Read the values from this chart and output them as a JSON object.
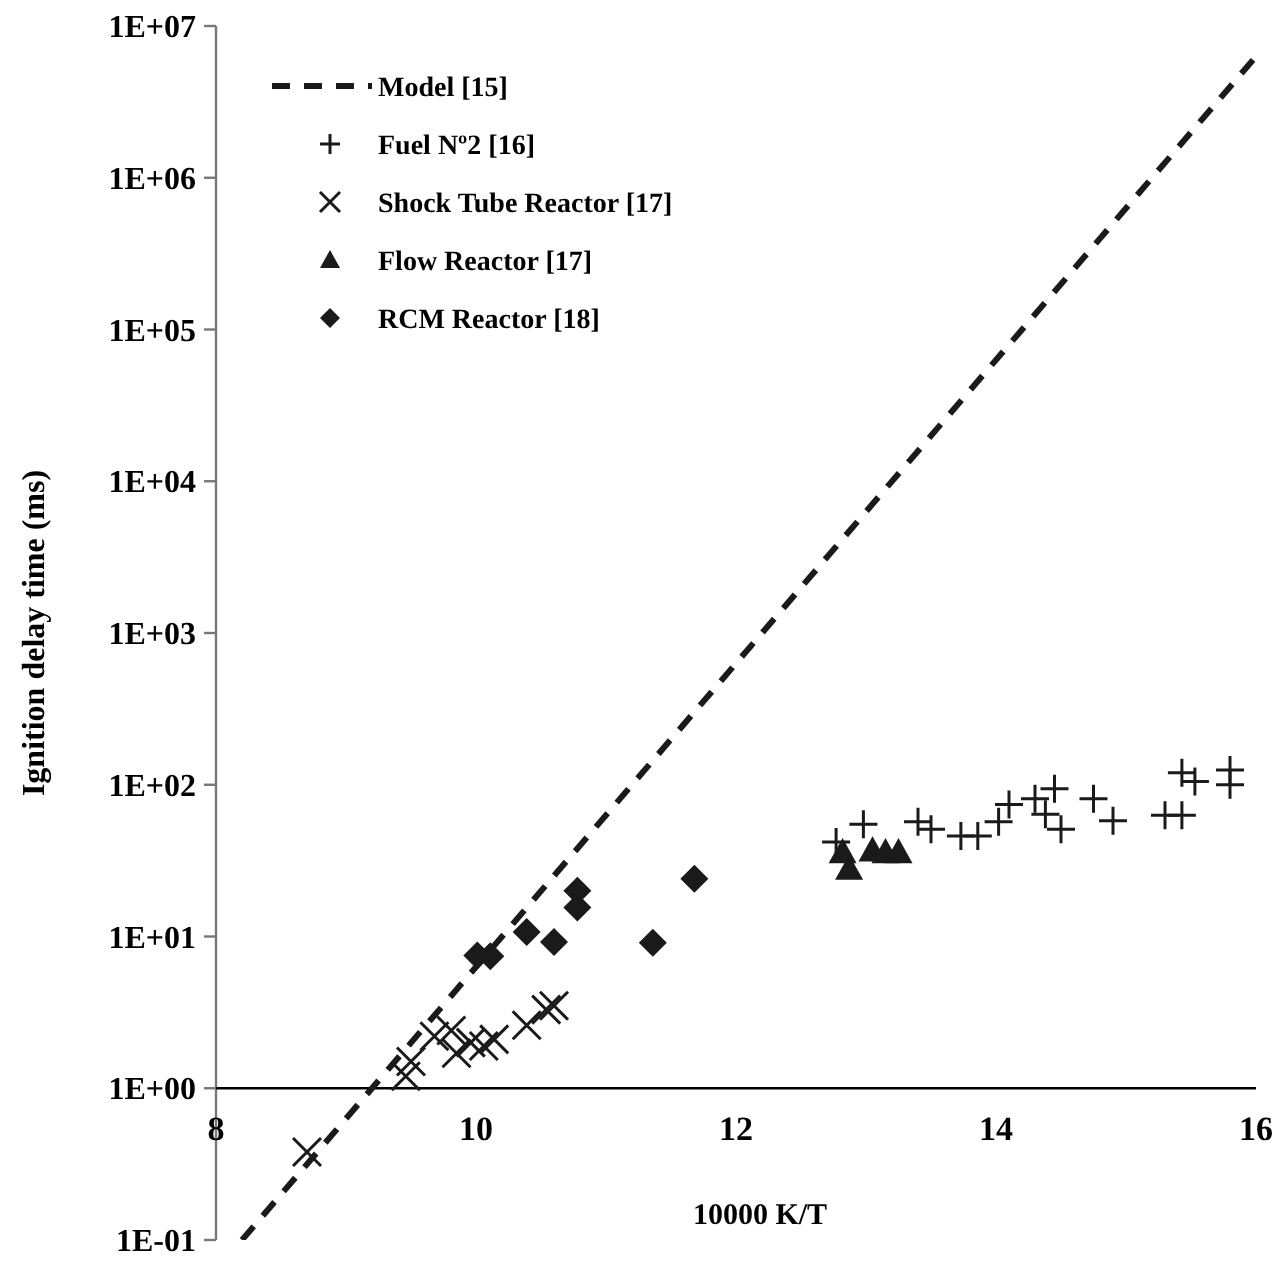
{
  "chart_data": {
    "type": "scatter",
    "xlabel": "10000 K/T",
    "ylabel": "Ignition delay time (ms)",
    "xlim": [
      8,
      16
    ],
    "xticks": [
      8,
      10,
      12,
      14,
      16
    ],
    "ylim": [
      0.1,
      10000000
    ],
    "log": "y",
    "yticks": [
      {
        "value": 0.1,
        "label": "1E-01"
      },
      {
        "value": 1,
        "label": "1E+00"
      },
      {
        "value": 10,
        "label": "1E+01"
      },
      {
        "value": 100,
        "label": "1E+02"
      },
      {
        "value": 1000,
        "label": "1E+03"
      },
      {
        "value": 10000,
        "label": "1E+04"
      },
      {
        "value": 100000,
        "label": "1E+05"
      },
      {
        "value": 1000000,
        "label": "1E+06"
      },
      {
        "value": 10000000,
        "label": "1E+07"
      }
    ],
    "grid": false,
    "legend": "top left",
    "series": [
      {
        "name": "Model [15]",
        "type": "line",
        "line_style": "dashed",
        "marker": "none",
        "color": "#1a1a1a",
        "x": [
          8.2,
          16
        ],
        "values": [
          0.1,
          6300000
        ]
      },
      {
        "name": "Fuel Nº2 [16]",
        "marker": "plus",
        "color": "#1a1a1a",
        "x": [
          12.77,
          12.98,
          13.4,
          13.5,
          13.73,
          13.86,
          14.02,
          14.1,
          14.3,
          14.45,
          14.38,
          14.5,
          14.75,
          14.9,
          15.3,
          15.43,
          15.43,
          15.53,
          15.8,
          15.8
        ],
        "values": [
          42,
          55,
          57,
          51,
          46,
          46,
          57,
          74,
          81,
          94,
          64,
          51,
          81,
          58,
          63,
          63,
          120,
          105,
          125,
          100
        ]
      },
      {
        "name": "Shock Tube Reactor [17]",
        "marker": "cross",
        "color": "#1a1a1a",
        "x": [
          8.7,
          9.46,
          9.5,
          9.68,
          9.81,
          9.85,
          9.96,
          10.06,
          10.14,
          10.39,
          10.54,
          10.6
        ],
        "values": [
          0.38,
          1.2,
          1.5,
          2.2,
          2.4,
          1.7,
          2.0,
          1.9,
          2.1,
          2.6,
          3.3,
          3.5
        ]
      },
      {
        "name": "Flow Reactor [17]",
        "marker": "triangle",
        "color": "#1a1a1a",
        "x": [
          12.82,
          12.87,
          13.05,
          13.15,
          13.25
        ],
        "values": [
          36,
          28,
          37,
          36,
          36
        ]
      },
      {
        "name": "RCM Reactor [18]",
        "marker": "diamond",
        "color": "#1a1a1a",
        "x": [
          10.01,
          10.11,
          10.39,
          10.6,
          10.78,
          10.78,
          11.36,
          11.68
        ],
        "values": [
          7.5,
          7.4,
          10.7,
          9.2,
          20,
          15.5,
          9.1,
          24
        ]
      }
    ]
  }
}
